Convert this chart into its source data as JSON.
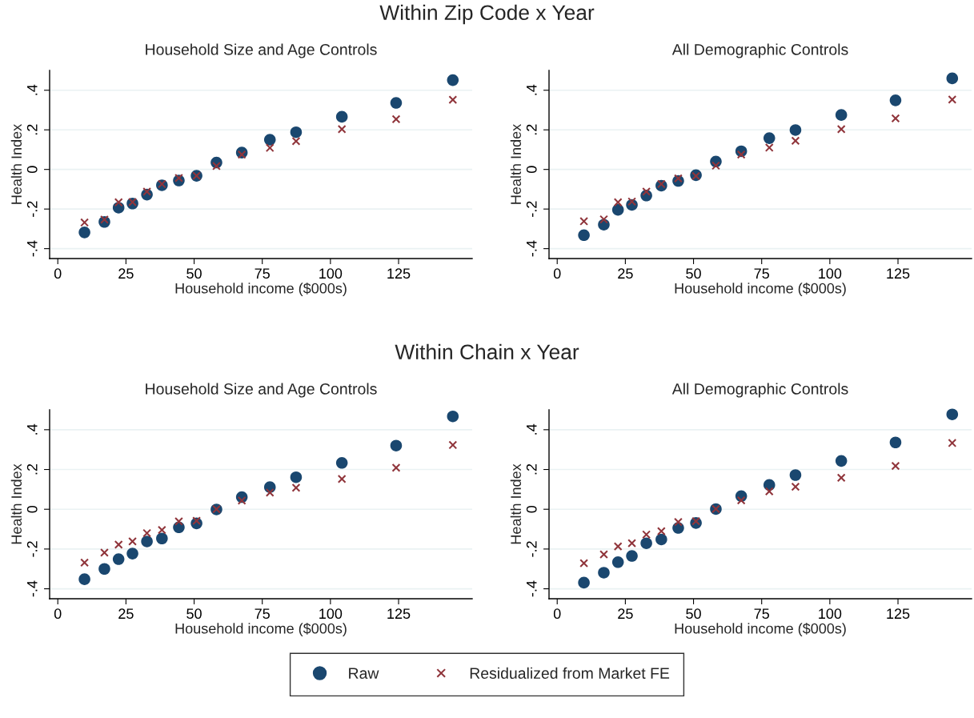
{
  "chart_data": [
    {
      "type": "scatter",
      "title": "Household Size and Age Controls",
      "annotations": [
        "Within Zip Code x Year"
      ],
      "xlabel": "Household income ($000s)",
      "ylabel": "Health Index",
      "x": [
        9.8,
        17.1,
        22.3,
        27.4,
        32.7,
        38.2,
        44.4,
        50.9,
        58.2,
        67.5,
        77.8,
        87.4,
        104.2,
        124.1,
        144.9
      ],
      "series": [
        {
          "name": "Raw",
          "color": "#1a476f",
          "marker": "circle",
          "values": [
            -0.318,
            -0.265,
            -0.193,
            -0.172,
            -0.127,
            -0.08,
            -0.056,
            -0.032,
            0.035,
            0.085,
            0.15,
            0.188,
            0.266,
            0.336,
            0.451
          ]
        },
        {
          "name": "Residualized from Market FE",
          "color": "#90353b",
          "marker": "cross",
          "values": [
            -0.268,
            -0.253,
            -0.166,
            -0.165,
            -0.112,
            -0.074,
            -0.043,
            -0.032,
            0.017,
            0.075,
            0.109,
            0.143,
            0.203,
            0.254,
            0.352
          ]
        }
      ],
      "xlim": [
        -3,
        152
      ],
      "xticks": [
        0,
        25,
        50,
        75,
        100,
        125
      ],
      "ylim": [
        -0.45,
        0.5
      ],
      "yticks": [
        {
          "value": -0.4,
          "label": "-.4"
        },
        {
          "value": -0.2,
          "label": "-.2"
        },
        0,
        {
          "value": 0.2,
          "label": ".2"
        },
        {
          "value": 0.4,
          "label": ".4"
        }
      ],
      "grid": "y",
      "legend": "bottom"
    },
    {
      "type": "scatter",
      "title": "All Demographic Controls",
      "xlabel": "Household income ($000s)",
      "ylabel": "Health Index",
      "x": [
        9.8,
        17.1,
        22.3,
        27.4,
        32.7,
        38.2,
        44.4,
        50.9,
        58.2,
        67.5,
        77.8,
        87.4,
        104.2,
        124.1,
        144.9
      ],
      "series": [
        {
          "color": "#1a476f",
          "marker": "circle",
          "values": [
            -0.332,
            -0.279,
            -0.204,
            -0.179,
            -0.132,
            -0.082,
            -0.058,
            -0.029,
            0.04,
            0.092,
            0.158,
            0.199,
            0.275,
            0.349,
            0.46
          ]
        },
        {
          "color": "#90353b",
          "marker": "cross",
          "values": [
            -0.262,
            -0.252,
            -0.166,
            -0.162,
            -0.112,
            -0.074,
            -0.045,
            -0.033,
            0.019,
            0.075,
            0.11,
            0.145,
            0.203,
            0.258,
            0.353
          ]
        }
      ],
      "xlim": [
        -3,
        152
      ],
      "xticks": [
        0,
        25,
        50,
        75,
        100,
        125
      ],
      "ylim": [
        -0.45,
        0.5
      ],
      "yticks": [
        {
          "value": -0.4,
          "label": "-.4"
        },
        {
          "value": -0.2,
          "label": "-.2"
        },
        0,
        {
          "value": 0.2,
          "label": ".2"
        },
        {
          "value": 0.4,
          "label": ".4"
        }
      ],
      "grid": "y"
    },
    {
      "type": "scatter",
      "title": "Household Size and Age Controls",
      "annotations": [
        "Within Chain x Year"
      ],
      "xlabel": "Household income ($000s)",
      "ylabel": "Health Index",
      "x": [
        9.8,
        17.1,
        22.3,
        27.4,
        32.7,
        38.2,
        44.4,
        50.9,
        58.2,
        67.5,
        77.8,
        87.4,
        104.2,
        124.1,
        144.9
      ],
      "series": [
        {
          "color": "#1a476f",
          "marker": "circle",
          "values": [
            -0.352,
            -0.3,
            -0.251,
            -0.223,
            -0.162,
            -0.147,
            -0.091,
            -0.071,
            -0.001,
            0.061,
            0.111,
            0.161,
            0.233,
            0.32,
            0.467
          ]
        },
        {
          "color": "#90353b",
          "marker": "cross",
          "values": [
            -0.268,
            -0.218,
            -0.178,
            -0.162,
            -0.12,
            -0.104,
            -0.061,
            -0.058,
            0.0,
            0.044,
            0.084,
            0.108,
            0.152,
            0.209,
            0.323
          ]
        }
      ],
      "xlim": [
        -3,
        152
      ],
      "xticks": [
        0,
        25,
        50,
        75,
        100,
        125
      ],
      "ylim": [
        -0.45,
        0.5
      ],
      "yticks": [
        {
          "value": -0.4,
          "label": "-.4"
        },
        {
          "value": -0.2,
          "label": "-.2"
        },
        0,
        {
          "value": 0.2,
          "label": ".2"
        },
        {
          "value": 0.4,
          "label": ".4"
        }
      ],
      "grid": "y"
    },
    {
      "type": "scatter",
      "title": "All Demographic Controls",
      "xlabel": "Household income ($000s)",
      "ylabel": "Health Index",
      "x": [
        9.8,
        17.1,
        22.3,
        27.4,
        32.7,
        38.2,
        44.4,
        50.9,
        58.2,
        67.5,
        77.8,
        87.4,
        104.2,
        124.1,
        144.9
      ],
      "series": [
        {
          "color": "#1a476f",
          "marker": "circle",
          "values": [
            -0.369,
            -0.319,
            -0.266,
            -0.235,
            -0.171,
            -0.152,
            -0.094,
            -0.069,
            0.001,
            0.066,
            0.122,
            0.172,
            0.243,
            0.336,
            0.477
          ]
        },
        {
          "color": "#90353b",
          "marker": "cross",
          "values": [
            -0.271,
            -0.227,
            -0.187,
            -0.171,
            -0.127,
            -0.11,
            -0.064,
            -0.06,
            0.001,
            0.045,
            0.09,
            0.113,
            0.158,
            0.218,
            0.333
          ]
        }
      ],
      "xlim": [
        -3,
        152
      ],
      "xticks": [
        0,
        25,
        50,
        75,
        100,
        125
      ],
      "ylim": [
        -0.45,
        0.5
      ],
      "yticks": [
        {
          "value": -0.4,
          "label": "-.4"
        },
        {
          "value": -0.2,
          "label": "-.2"
        },
        0,
        {
          "value": 0.2,
          "label": ".2"
        },
        {
          "value": 0.4,
          "label": ".4"
        }
      ],
      "grid": "y"
    }
  ]
}
